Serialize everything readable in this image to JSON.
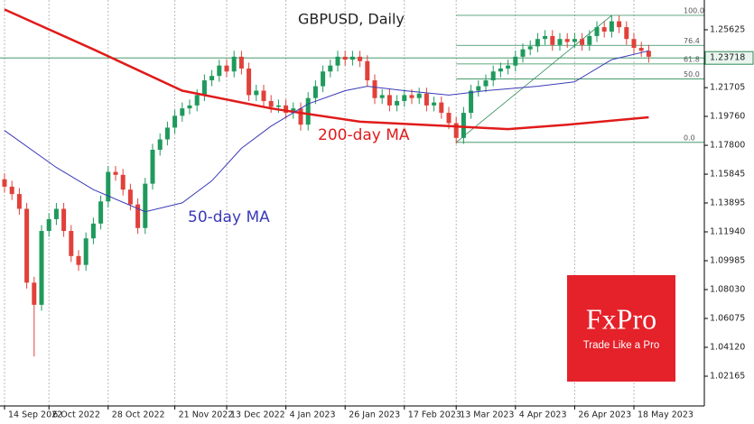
{
  "chart_data": {
    "type": "candlestick",
    "title": "GBPUSD, Daily",
    "categories": [
      "14 Sep 2022",
      null,
      null,
      null,
      null,
      null,
      "6 Oct 2022",
      null,
      null,
      null,
      null,
      null,
      null,
      null,
      "28 Oct 2022",
      null,
      null,
      null,
      null,
      null,
      null,
      null,
      null,
      "21 Nov 2022",
      null,
      null,
      null,
      null,
      null,
      null,
      "13 Dec 2022",
      null,
      null,
      null,
      null,
      null,
      null,
      null,
      "4 Jan 2023",
      null,
      null,
      null,
      null,
      null,
      null,
      null,
      "26 Jan 2023",
      null,
      null,
      null,
      null,
      null,
      null,
      null,
      "17 Feb 2023",
      null,
      null,
      null,
      null,
      null,
      null,
      "13 Mar 2023",
      null,
      null,
      null,
      null,
      null,
      null,
      null,
      "4 Apr 2023",
      null,
      null,
      null,
      null,
      null,
      null,
      null,
      "26 Apr 2023",
      null,
      null,
      null,
      null,
      null,
      null,
      null,
      "18 May 2023",
      null,
      null
    ],
    "candles": {
      "up_color": "#1f9a5c",
      "down_color": "#e0413a",
      "open": [
        1.155,
        1.15,
        1.145,
        1.135,
        1.085,
        1.07,
        1.12,
        1.128,
        1.135,
        1.12,
        1.103,
        1.097,
        1.115,
        1.125,
        1.14,
        1.16,
        1.158,
        1.148,
        1.138,
        1.122,
        1.152,
        1.175,
        1.182,
        1.19,
        1.198,
        1.203,
        1.205,
        1.212,
        1.222,
        1.225,
        1.232,
        1.228,
        1.238,
        1.23,
        1.212,
        1.215,
        1.208,
        1.204,
        1.205,
        1.2,
        1.203,
        1.192,
        1.21,
        1.218,
        1.228,
        1.232,
        1.238,
        1.236,
        1.238,
        1.235,
        1.222,
        1.21,
        1.212,
        1.205,
        1.208,
        1.212,
        1.21,
        1.213,
        1.205,
        1.207,
        1.2,
        1.193,
        1.183,
        1.2,
        1.215,
        1.218,
        1.222,
        1.228,
        1.23,
        1.232,
        1.238,
        1.243,
        1.245,
        1.25,
        1.252,
        1.246,
        1.25,
        1.248,
        1.25,
        1.246,
        1.252,
        1.258,
        1.255,
        1.262,
        1.258,
        1.25,
        1.244,
        1.242
      ],
      "high": [
        1.159,
        1.154,
        1.149,
        1.139,
        1.089,
        1.124,
        1.132,
        1.139,
        1.139,
        1.124,
        1.107,
        1.119,
        1.129,
        1.144,
        1.164,
        1.164,
        1.162,
        1.152,
        1.142,
        1.156,
        1.179,
        1.186,
        1.194,
        1.202,
        1.207,
        1.209,
        1.216,
        1.226,
        1.229,
        1.236,
        1.236,
        1.242,
        1.242,
        1.234,
        1.219,
        1.219,
        1.212,
        1.209,
        1.209,
        1.207,
        1.207,
        1.214,
        1.222,
        1.232,
        1.236,
        1.242,
        1.242,
        1.242,
        1.242,
        1.239,
        1.226,
        1.216,
        1.216,
        1.212,
        1.216,
        1.216,
        1.217,
        1.217,
        1.211,
        1.211,
        1.204,
        1.197,
        1.204,
        1.219,
        1.222,
        1.226,
        1.232,
        1.234,
        1.236,
        1.242,
        1.247,
        1.249,
        1.254,
        1.256,
        1.256,
        1.254,
        1.254,
        1.254,
        1.254,
        1.256,
        1.262,
        1.262,
        1.266,
        1.266,
        1.262,
        1.254,
        1.248,
        1.246
      ],
      "low": [
        1.146,
        1.141,
        1.131,
        1.081,
        1.035,
        1.066,
        1.116,
        1.124,
        1.116,
        1.099,
        1.093,
        1.093,
        1.111,
        1.121,
        1.136,
        1.154,
        1.144,
        1.134,
        1.118,
        1.118,
        1.148,
        1.171,
        1.178,
        1.186,
        1.194,
        1.199,
        1.201,
        1.208,
        1.218,
        1.221,
        1.224,
        1.224,
        1.226,
        1.208,
        1.208,
        1.204,
        1.2,
        1.2,
        1.196,
        1.196,
        1.188,
        1.188,
        1.206,
        1.214,
        1.224,
        1.228,
        1.232,
        1.232,
        1.231,
        1.218,
        1.206,
        1.206,
        1.201,
        1.201,
        1.204,
        1.206,
        1.206,
        1.201,
        1.201,
        1.196,
        1.189,
        1.179,
        1.179,
        1.196,
        1.211,
        1.214,
        1.218,
        1.224,
        1.226,
        1.228,
        1.234,
        1.239,
        1.241,
        1.246,
        1.242,
        1.242,
        1.244,
        1.244,
        1.242,
        1.242,
        1.248,
        1.251,
        1.251,
        1.254,
        1.246,
        1.24,
        1.238,
        1.234
      ],
      "close": [
        1.15,
        1.145,
        1.135,
        1.085,
        1.07,
        1.12,
        1.128,
        1.135,
        1.12,
        1.103,
        1.097,
        1.115,
        1.125,
        1.14,
        1.16,
        1.158,
        1.148,
        1.138,
        1.122,
        1.152,
        1.175,
        1.182,
        1.19,
        1.198,
        1.203,
        1.205,
        1.212,
        1.222,
        1.225,
        1.232,
        1.228,
        1.238,
        1.23,
        1.212,
        1.215,
        1.208,
        1.204,
        1.205,
        1.2,
        1.203,
        1.192,
        1.21,
        1.218,
        1.228,
        1.232,
        1.238,
        1.236,
        1.238,
        1.235,
        1.222,
        1.21,
        1.212,
        1.205,
        1.208,
        1.212,
        1.21,
        1.213,
        1.205,
        1.207,
        1.2,
        1.193,
        1.183,
        1.2,
        1.215,
        1.218,
        1.222,
        1.228,
        1.23,
        1.232,
        1.238,
        1.243,
        1.245,
        1.25,
        1.252,
        1.246,
        1.25,
        1.248,
        1.25,
        1.246,
        1.252,
        1.258,
        1.255,
        1.262,
        1.258,
        1.25,
        1.244,
        1.242,
        1.238
      ]
    },
    "series": [
      {
        "name": "200-day MA",
        "color": "#e01b1b",
        "width": 2.5,
        "x": [
          0,
          12,
          24,
          36,
          48,
          60,
          68,
          76,
          87
        ],
        "values": [
          1.27,
          1.243,
          1.215,
          1.203,
          1.194,
          1.191,
          1.189,
          1.192,
          1.197
        ]
      },
      {
        "name": "50-day MA",
        "color": "#3a3ab8",
        "width": 1,
        "x": [
          0,
          7,
          12,
          19,
          24,
          28,
          32,
          36,
          41,
          46,
          49,
          54,
          60,
          65,
          72,
          77,
          82,
          87
        ],
        "values": [
          1.188,
          1.163,
          1.148,
          1.133,
          1.139,
          1.154,
          1.176,
          1.191,
          1.206,
          1.215,
          1.218,
          1.215,
          1.212,
          1.215,
          1.218,
          1.221,
          1.236,
          1.242
        ]
      }
    ],
    "fibonacci": {
      "color": "#2e8b57",
      "x": [
        61,
        82
      ],
      "values": [
        1.18,
        1.266
      ],
      "levels": [
        {
          "label": "100.0",
          "price": 1.266
        },
        {
          "label": "76.4",
          "price": 1.2457
        },
        {
          "label": "61.8",
          "price": 1.2331
        },
        {
          "label": "50.0",
          "price": 1.223
        },
        {
          "label": "0.0",
          "price": 1.18
        }
      ]
    },
    "last_price": 1.23718,
    "ylim": [
      1.0015,
      1.2764
    ],
    "yticks": [
      1.25625,
      1.21705,
      {
        "value": 1.1976,
        "label": "1.19760"
      },
      {
        "value": 1.178,
        "label": "1.17800"
      },
      1.15845,
      1.13895,
      {
        "value": 1.1194,
        "label": "1.11940"
      },
      1.09985,
      {
        "value": 1.0803,
        "label": "1.08030"
      },
      1.06075,
      {
        "value": 1.0412,
        "label": "1.04120"
      },
      1.02165
    ],
    "grid": true
  },
  "logo": {
    "name": "FxPro",
    "tagline": "Trade Like a Pro"
  }
}
